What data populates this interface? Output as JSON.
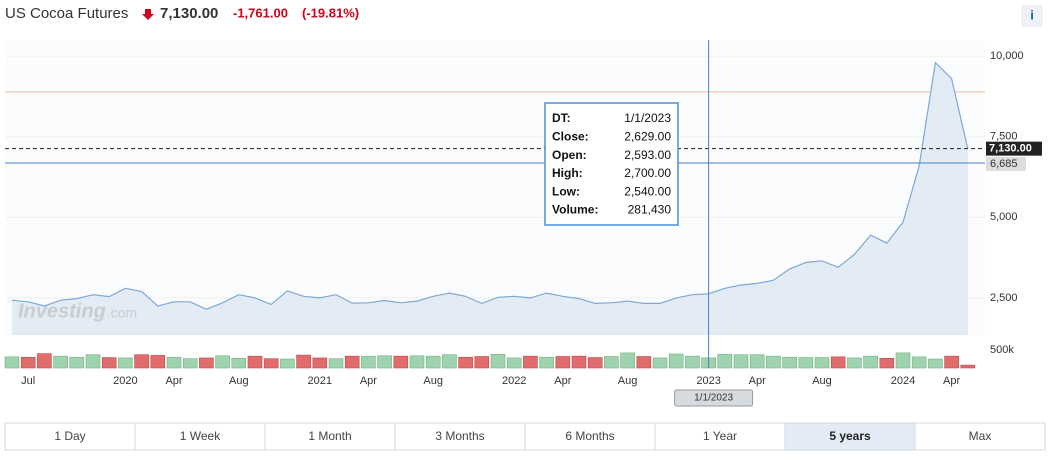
{
  "header": {
    "title": "US Cocoa Futures",
    "price": "7,130.00",
    "change": "-1,761.00",
    "change_pct": "(-19.81%)"
  },
  "chart_data": {
    "type": "line",
    "categories": [
      null,
      "Jul",
      null,
      null,
      null,
      null,
      null,
      "2020",
      null,
      null,
      "Apr",
      null,
      null,
      null,
      "Aug",
      null,
      null,
      null,
      null,
      "2021",
      null,
      null,
      "Apr",
      null,
      null,
      null,
      "Aug",
      null,
      null,
      null,
      null,
      "2022",
      null,
      null,
      "Apr",
      null,
      null,
      null,
      "Aug",
      null,
      null,
      null,
      null,
      "2023",
      null,
      null,
      "Apr",
      null,
      null,
      null,
      "Aug",
      null,
      null,
      null,
      null,
      "2024",
      null,
      null,
      "Apr",
      null
    ],
    "series": [
      {
        "name": "Close",
        "color": "#7ea9d8",
        "values": [
          2430,
          2380,
          2250,
          2430,
          2480,
          2600,
          2540,
          2800,
          2700,
          2250,
          2380,
          2380,
          2150,
          2350,
          2600,
          2500,
          2300,
          2720,
          2550,
          2500,
          2600,
          2340,
          2350,
          2420,
          2350,
          2400,
          2550,
          2650,
          2550,
          2330,
          2520,
          2550,
          2500,
          2650,
          2550,
          2480,
          2330,
          2350,
          2400,
          2330,
          2330,
          2500,
          2600,
          2629,
          2800,
          2900,
          2950,
          3050,
          3400,
          3600,
          3650,
          3450,
          3850,
          4450,
          4200,
          4850,
          6600,
          9800,
          9300,
          7130
        ]
      },
      {
        "name": "Volume",
        "axis": "y2",
        "values": [
          310000,
          300000,
          400000,
          330000,
          300000,
          370000,
          290000,
          280000,
          370000,
          350000,
          300000,
          260000,
          280000,
          340000,
          270000,
          330000,
          260000,
          250000,
          360000,
          280000,
          260000,
          330000,
          330000,
          340000,
          330000,
          340000,
          330000,
          370000,
          300000,
          320000,
          380000,
          280000,
          330000,
          300000,
          320000,
          330000,
          290000,
          320000,
          420000,
          320000,
          280000,
          390000,
          330000,
          281430,
          380000,
          370000,
          370000,
          330000,
          300000,
          290000,
          290000,
          310000,
          280000,
          330000,
          270000,
          420000,
          310000,
          250000,
          330000,
          80000
        ]
      }
    ],
    "up_color": "#9fd3ad",
    "down_color": "#e06c6c",
    "ylim": [
      1350,
      10500
    ],
    "yticks": [
      {
        "value": 2500,
        "label": "2,500"
      },
      {
        "value": 5000,
        "label": "5,000"
      },
      {
        "value": 7500,
        "label": "7,500"
      },
      {
        "value": 10000,
        "label": "10,000"
      }
    ],
    "y2lim": [
      0,
      640000
    ],
    "y2ticks": [
      {
        "value": 500000,
        "label": "500k"
      }
    ],
    "reference_line": 8891,
    "price_markers": [
      {
        "value": 7130,
        "label": "7,130.00"
      },
      {
        "value": 6685,
        "label": "6,685"
      }
    ],
    "crosshair": {
      "index": 43,
      "x_label": "1/1/2023"
    },
    "grid": true
  },
  "watermark": "Investing",
  "watermark_suffix": ".com",
  "tooltip": [
    [
      "DT:",
      "1/1/2023"
    ],
    [
      "Close:",
      "2,629.00"
    ],
    [
      "Open:",
      "2,593.00"
    ],
    [
      "High:",
      "2,700.00"
    ],
    [
      "Low:",
      "2,540.00"
    ],
    [
      "Volume:",
      "281,430"
    ]
  ],
  "range_buttons": [
    "1 Day",
    "1 Week",
    "1 Month",
    "3 Months",
    "6 Months",
    "1 Year",
    "5 years",
    "Max"
  ],
  "active_button": 6
}
